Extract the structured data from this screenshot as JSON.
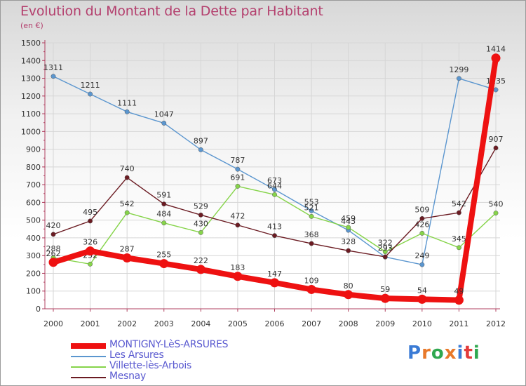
{
  "chart_data": {
    "type": "line",
    "title": "Evolution du Montant de la Dette par Habitant",
    "subtitle": "(en €)",
    "x": [
      "2000",
      "2001",
      "2002",
      "2003",
      "2004",
      "2005",
      "2006",
      "2007",
      "2008",
      "2009",
      "2010",
      "2011",
      "2012"
    ],
    "y_ticks": [
      "0",
      "100",
      "200",
      "300",
      "400",
      "500",
      "600",
      "700",
      "800",
      "900",
      "1000",
      "1100",
      "1200",
      "1300",
      "1400",
      "1500"
    ],
    "ylim": [
      0,
      1500
    ],
    "grid": true,
    "legend_position": "bottom-left",
    "series": [
      {
        "name": "Les Arsures",
        "color": "#5b96cf",
        "values": [
          1311,
          1211,
          1111,
          1047,
          897,
          787,
          673,
          553,
          443,
          292,
          249,
          1299,
          1235
        ],
        "labels": [
          "1311",
          "1211",
          "1111",
          "1047",
          "897",
          "787",
          "673",
          "553",
          "443",
          "292",
          "249",
          "1299",
          "1235"
        ]
      },
      {
        "name": "Villette-lès-Arbois",
        "color": "#86d44a",
        "values": [
          288,
          252,
          542,
          484,
          430,
          691,
          644,
          521,
          459,
          322,
          426,
          345,
          540
        ],
        "labels": [
          "288",
          "252",
          "542",
          "484",
          "430",
          "691",
          "644",
          "521",
          "459",
          "322",
          "426",
          "345",
          "540"
        ]
      },
      {
        "name": "Mesnay",
        "color": "#6b1b22",
        "values": [
          420,
          495,
          740,
          591,
          529,
          472,
          413,
          368,
          328,
          293,
          509,
          542,
          907
        ],
        "labels": [
          "420",
          "495",
          "740",
          "591",
          "529",
          "472",
          "413",
          "368",
          "328",
          "293",
          "509",
          "542",
          "907"
        ]
      },
      {
        "name": "MONTIGNY-LèS-ARSURES",
        "color": "#ee1111",
        "values": [
          262,
          326,
          287,
          255,
          222,
          183,
          147,
          109,
          80,
          59,
          54,
          49,
          1414
        ],
        "labels": [
          "262",
          "326",
          "287",
          "255",
          "222",
          "183",
          "147",
          "109",
          "80",
          "59",
          "54",
          "49",
          "1414"
        ]
      }
    ]
  },
  "legend": [
    {
      "label": "MONTIGNY-LèS-ARSURES",
      "color": "#ee1111"
    },
    {
      "label": "Les Arsures",
      "color": "#5b96cf"
    },
    {
      "label": "Villette-lès-Arbois",
      "color": "#86d44a"
    },
    {
      "label": "Mesnay",
      "color": "#6b1b22"
    }
  ],
  "logo": {
    "letters": [
      "P",
      "r",
      "o",
      "x",
      "i",
      "t",
      "i"
    ],
    "colors": [
      "#3a7bd5",
      "#e8792a",
      "#2fa84f",
      "#e8792a",
      "#3a7bd5",
      "#e33b3b",
      "#2fa84f"
    ]
  }
}
